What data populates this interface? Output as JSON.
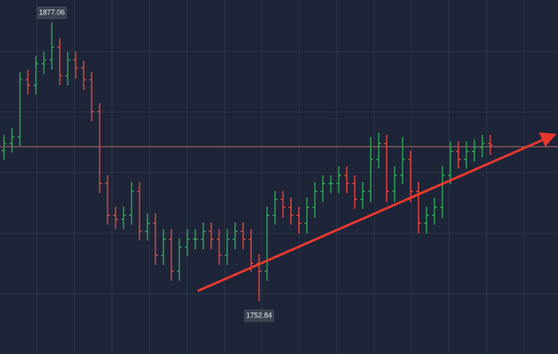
{
  "chart_data": {
    "type": "ohlc",
    "ylim": [
      1729.4,
      1887.0
    ],
    "up_color": "#2fa25a",
    "down_color": "#e0443f",
    "price_line": 1821.7,
    "price_line_color": "#b5705e",
    "open": [
      1820,
      1823.1,
      1826,
      1851.5,
      1849,
      1858.6,
      1860.4,
      1866,
      1853.3,
      1860.4,
      1856.8,
      1851.5,
      1837.3,
      1805.3,
      1791.2,
      1789.4,
      1791.2,
      1801.8,
      1784.1,
      1787.6,
      1773.4,
      1780.5,
      1766.3,
      1777,
      1780.5,
      1780.5,
      1784.1,
      1780.5,
      1773.4,
      1780.5,
      1784.1,
      1780.5,
      1769.8,
      1766.3,
      1791.2,
      1798.3,
      1794.7,
      1791.2,
      1787.6,
      1794.7,
      1801.8,
      1805.3,
      1805.3,
      1808.9,
      1805.3,
      1798.3,
      1801.8,
      1816,
      1823.1,
      1801.8,
      1808.9,
      1816,
      1801.8,
      1787.6,
      1791.2,
      1794.7,
      1808.9,
      1819.6,
      1816,
      1819.6,
      1821.4,
      1823.1
    ],
    "high": [
      1827,
      1830,
      1855,
      1856,
      1862,
      1864,
      1877.06,
      1870,
      1864,
      1864,
      1860,
      1855,
      1841,
      1809,
      1795,
      1795,
      1806,
      1806,
      1792,
      1792,
      1785,
      1785,
      1781,
      1785,
      1785,
      1788,
      1788,
      1785,
      1785,
      1788,
      1788,
      1785,
      1774,
      1795,
      1802,
      1802,
      1799,
      1795,
      1799,
      1806,
      1809,
      1809,
      1813,
      1813,
      1809,
      1806,
      1826,
      1828,
      1827,
      1813,
      1826,
      1820,
      1806,
      1795,
      1799,
      1813,
      1824,
      1824,
      1824,
      1825,
      1827,
      1827
    ],
    "low": [
      1816,
      1819,
      1822,
      1845,
      1845,
      1854,
      1856,
      1849,
      1849,
      1852,
      1847,
      1833,
      1801,
      1787,
      1785,
      1785,
      1787,
      1780,
      1780,
      1769,
      1769,
      1762,
      1762,
      1773,
      1776,
      1776,
      1776,
      1769,
      1769,
      1776,
      1776,
      1766,
      1752.84,
      1762,
      1787,
      1790,
      1787,
      1783,
      1783,
      1790,
      1797,
      1801,
      1801,
      1801,
      1794,
      1794,
      1797,
      1812,
      1797,
      1797,
      1805,
      1797,
      1783,
      1783,
      1787,
      1790,
      1805,
      1812,
      1812,
      1815,
      1817,
      1818
    ],
    "close": [
      1823.1,
      1826,
      1851.5,
      1849,
      1858.6,
      1860.4,
      1866,
      1853.3,
      1860.4,
      1856.8,
      1851.5,
      1837.3,
      1805.3,
      1791.2,
      1789.4,
      1791.2,
      1801.8,
      1784.1,
      1787.6,
      1773.4,
      1780.5,
      1766.3,
      1777,
      1780.5,
      1780.5,
      1784.1,
      1780.5,
      1773.4,
      1780.5,
      1784.1,
      1780.5,
      1769.8,
      1766.3,
      1791.2,
      1798.3,
      1794.7,
      1791.2,
      1787.6,
      1794.7,
      1801.8,
      1805.3,
      1805.3,
      1808.9,
      1805.3,
      1798.3,
      1801.8,
      1816,
      1823.1,
      1801.8,
      1808.9,
      1816,
      1801.8,
      1787.6,
      1791.2,
      1794.7,
      1808.9,
      1819.6,
      1816,
      1819.6,
      1821.4,
      1823.1,
      1822.4
    ],
    "high_label_index": 6,
    "low_label_index": 32
  }
}
